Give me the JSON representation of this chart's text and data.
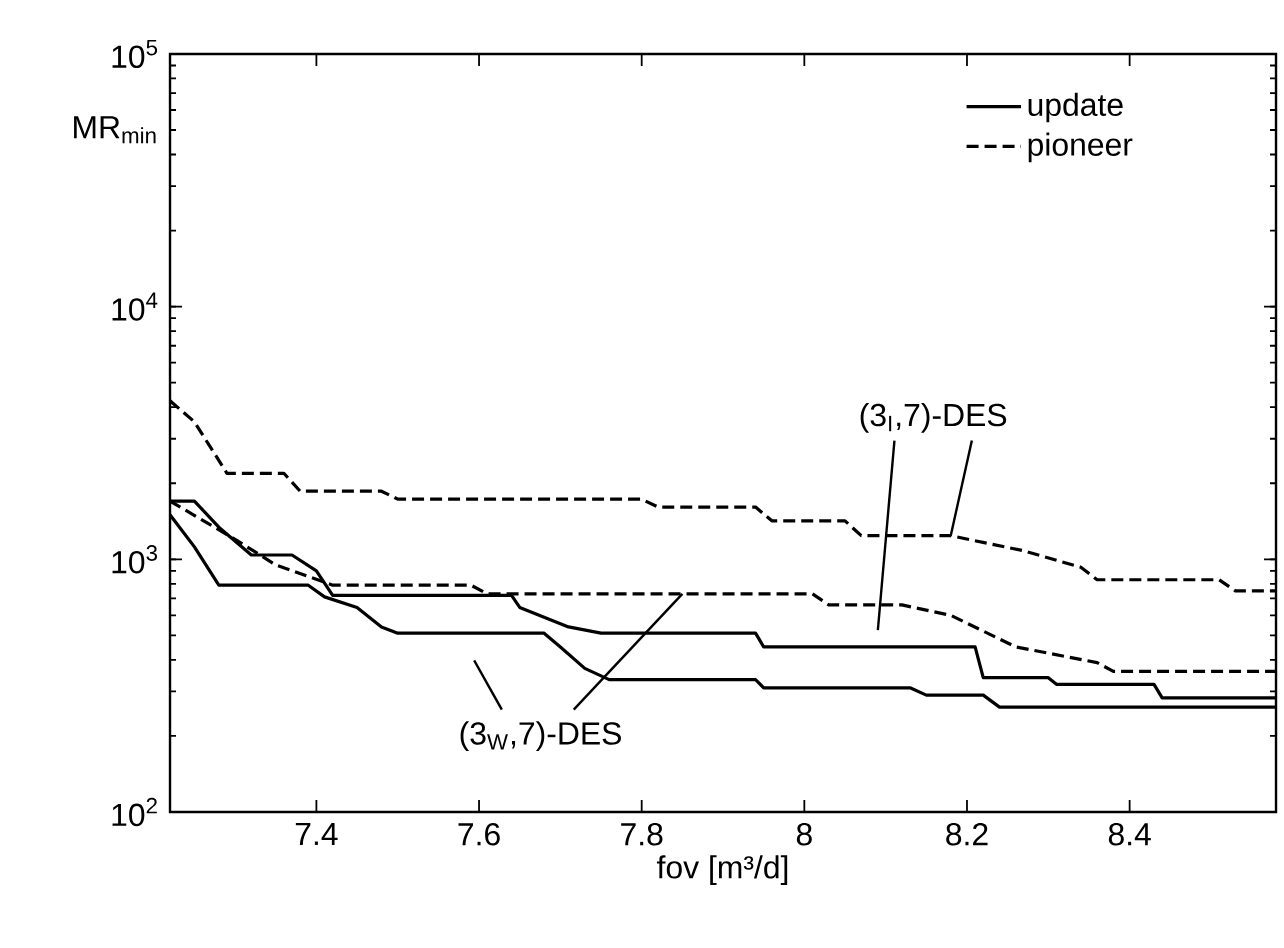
{
  "chart_data": {
    "type": "line",
    "xlabel": "fov [m³/d]",
    "ylabel": "MR$_{min}$",
    "log": "y",
    "xlim": [
      7.22,
      8.58
    ],
    "ylim": [
      100,
      100000
    ],
    "xticks": [
      7.4,
      7.6,
      7.8,
      8,
      8.2,
      8.4
    ],
    "yticks": [
      {
        "value": 100,
        "label": "10$^{2}$"
      },
      {
        "value": 1000,
        "label": "10$^{3}$"
      },
      {
        "value": 10000,
        "label": "10$^{4}$"
      },
      {
        "value": 100000,
        "label": "10$^{5}$"
      }
    ],
    "grid": false,
    "legend": "top right",
    "annotations": [
      {
        "text": "(3$_{I}$,7)-DES",
        "x": 8.18,
        "y": 1240
      },
      {
        "text": "(3$_{W}$,7)-DES",
        "x": 7.85,
        "y": 730
      }
    ],
    "series": [
      {
        "name": "update",
        "color": "#000000",
        "line_style": "solid",
        "x": [
          7.22,
          7.25,
          7.28,
          7.32,
          7.37,
          7.4,
          7.42,
          7.64,
          7.65,
          7.71,
          7.75,
          7.94,
          7.95,
          8.21,
          8.22,
          8.3,
          8.31,
          8.43,
          8.44,
          8.58
        ],
        "values": [
          1700,
          1700,
          1340,
          1040,
          1040,
          900,
          720,
          720,
          645,
          540,
          510,
          510,
          450,
          450,
          340,
          340,
          320,
          320,
          283,
          283
        ]
      },
      {
        "name": "pioneer",
        "color": "#000000",
        "line_style": "dashed",
        "x": [
          7.22,
          7.25,
          7.29,
          7.36,
          7.38,
          7.48,
          7.5,
          7.8,
          7.82,
          7.94,
          7.96,
          8.05,
          8.07,
          8.18,
          8.27,
          8.34,
          8.36,
          8.51,
          8.53,
          8.58
        ],
        "values": [
          4240,
          3500,
          2190,
          2190,
          1860,
          1860,
          1730,
          1730,
          1610,
          1610,
          1420,
          1420,
          1240,
          1240,
          1080,
          930,
          830,
          830,
          750,
          750
        ]
      },
      {
        "color": "#000000",
        "line_style": "solid",
        "x": [
          7.22,
          7.25,
          7.28,
          7.39,
          7.41,
          7.45,
          7.48,
          7.5,
          7.68,
          7.7,
          7.73,
          7.76,
          7.94,
          7.95,
          8.13,
          8.15,
          8.22,
          8.24,
          8.58
        ],
        "values": [
          1500,
          1120,
          790,
          790,
          710,
          645,
          540,
          510,
          510,
          450,
          370,
          334,
          334,
          310,
          310,
          290,
          290,
          260,
          260
        ]
      },
      {
        "color": "#000000",
        "line_style": "dashed",
        "x": [
          7.22,
          7.3,
          7.35,
          7.42,
          7.59,
          7.61,
          8.01,
          8.03,
          8.12,
          8.18,
          8.26,
          8.36,
          8.38,
          8.58
        ],
        "values": [
          1700,
          1200,
          950,
          790,
          790,
          730,
          730,
          660,
          660,
          600,
          450,
          390,
          360,
          360
        ]
      }
    ]
  }
}
